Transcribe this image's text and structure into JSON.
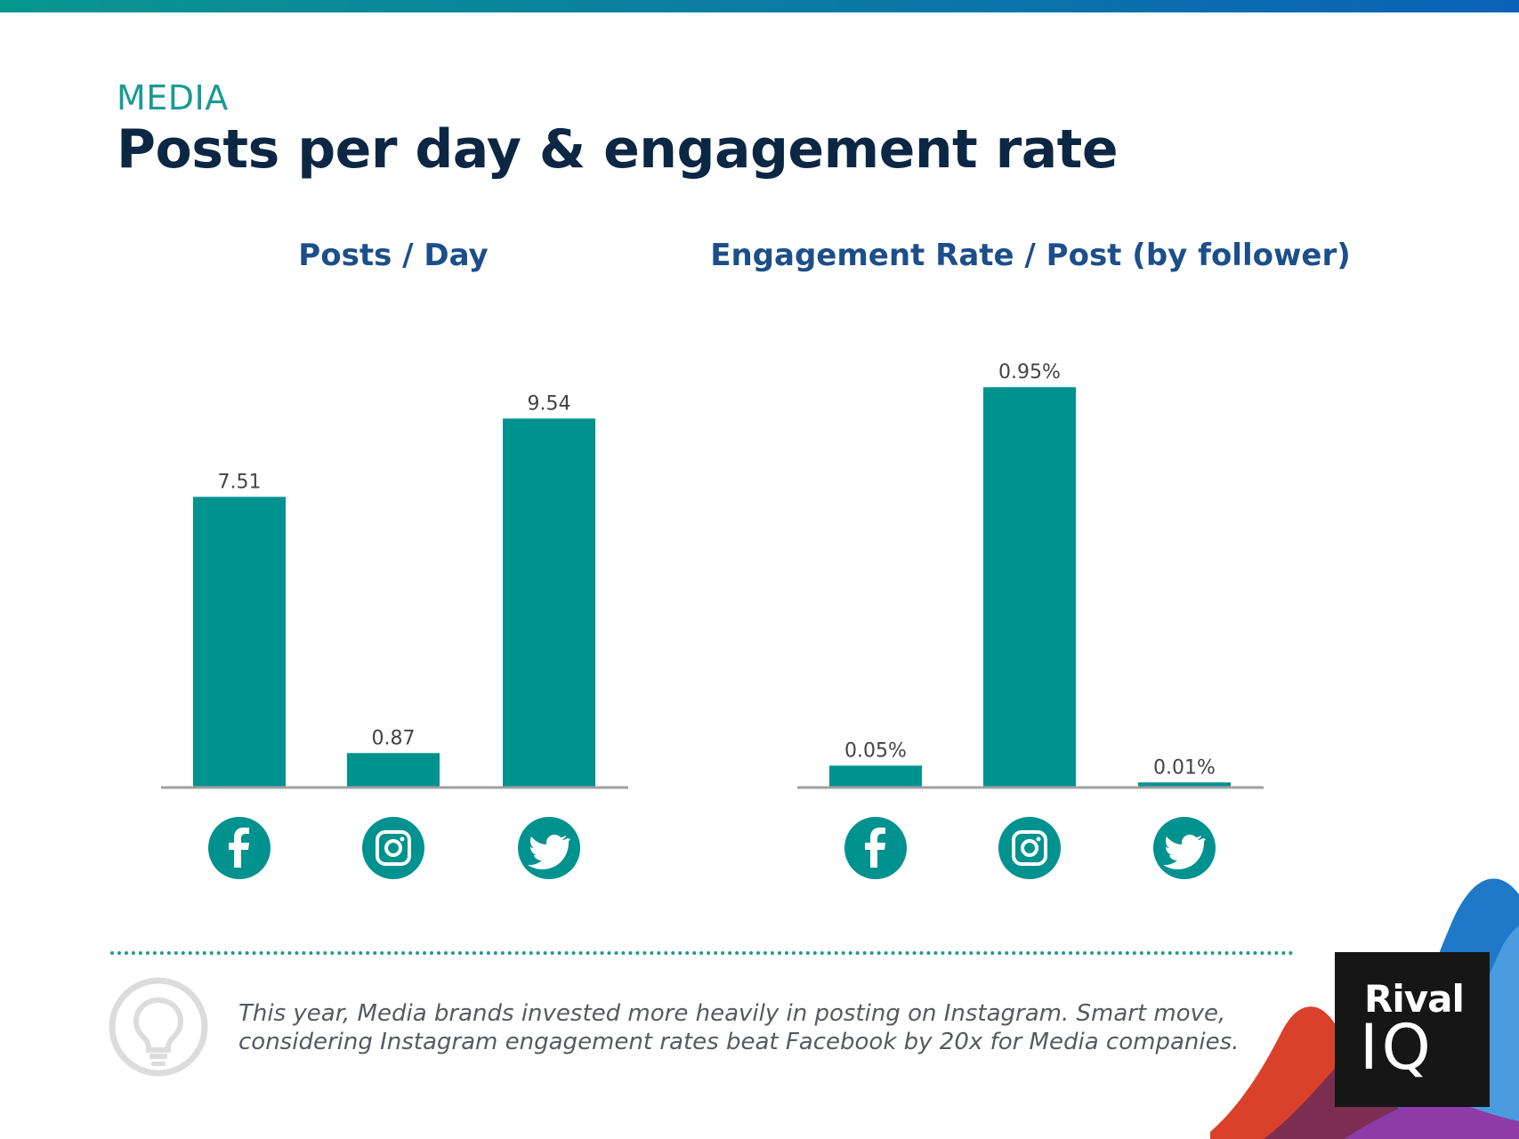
{
  "header": {
    "eyebrow": "MEDIA",
    "title": "Posts per day & engagement rate"
  },
  "colors": {
    "accent": "#00928F",
    "title_blue": "#1C4F8A",
    "dark_navy": "#0C2744",
    "axis": "#A0A0A0",
    "label": "#444444"
  },
  "chart_data": [
    {
      "type": "bar",
      "title": "Posts / Day",
      "categories": [
        "Facebook",
        "Instagram",
        "Twitter"
      ],
      "category_icons": [
        "facebook-icon",
        "instagram-icon",
        "twitter-icon"
      ],
      "values": [
        7.51,
        0.87,
        9.54
      ],
      "labels": [
        "7.51",
        "0.87",
        "9.54"
      ],
      "ylim": [
        0,
        11.07
      ],
      "xlabel": "",
      "ylabel": "",
      "grid": false
    },
    {
      "type": "bar",
      "title": "Engagement Rate / Post (by follower)",
      "categories": [
        "Facebook",
        "Instagram",
        "Twitter"
      ],
      "category_icons": [
        "facebook-icon",
        "instagram-icon",
        "twitter-icon"
      ],
      "values": [
        0.05,
        0.95,
        0.01
      ],
      "labels": [
        "0.05%",
        "0.95%",
        "0.01%"
      ],
      "ylim": [
        0,
        1.016
      ],
      "xlabel": "",
      "ylabel": "",
      "grid": false
    }
  ],
  "footer": {
    "note_line1": "This year, Media brands invested more heavily in posting on Instagram. Smart move,",
    "note_line2": "considering Instagram engagement rates beat Facebook by 20x for Media companies.",
    "icon": "lightbulb-icon"
  },
  "logo": {
    "line1": "Rival",
    "line2": "IQ"
  }
}
